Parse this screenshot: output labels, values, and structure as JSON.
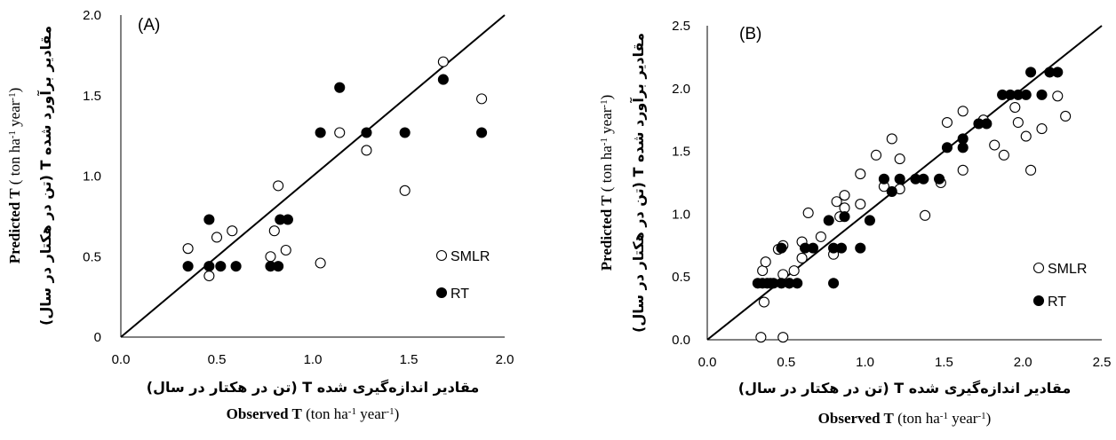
{
  "chart_data": [
    {
      "type": "scatter",
      "panel_label": "(A)",
      "xlim": [
        0,
        2.0
      ],
      "ylim": [
        0,
        2.0
      ],
      "xticks": [
        "0.0",
        "0.5",
        "1.0",
        "1.5",
        "2.0"
      ],
      "yticks": [
        "0",
        "0.5",
        "1.0",
        "1.5",
        "2.0"
      ],
      "xlabel_fa": "مقادیر اندازه‌گیری شده  T  (تن در هکتار در سال)",
      "xlabel_en": {
        "bold": "Observed T",
        "unit_pre": "(ton ha",
        "sup1": "-1",
        "unit_mid": " year",
        "sup2": "-1",
        "unit_post": ")"
      },
      "ylabel_en": {
        "bold": "Predicted T",
        "unit_pre": "( ton ha",
        "sup1": "-1",
        "unit_mid": " year",
        "sup2": "-1",
        "unit_post": ")"
      },
      "ylabel_fa": "مقادیر برآورد شده  T  (تن در هکتار در سال)",
      "reference_line": "1:1",
      "grid": false,
      "legend_position": "bottom-right",
      "series": [
        {
          "name": "SMLR",
          "marker": "open-circle",
          "points": [
            [
              0.35,
              0.55
            ],
            [
              0.46,
              0.38
            ],
            [
              0.5,
              0.62
            ],
            [
              0.58,
              0.66
            ],
            [
              0.78,
              0.5
            ],
            [
              0.8,
              0.66
            ],
            [
              0.82,
              0.94
            ],
            [
              0.86,
              0.54
            ],
            [
              1.04,
              0.46
            ],
            [
              1.14,
              1.27
            ],
            [
              1.28,
              1.16
            ],
            [
              1.48,
              0.91
            ],
            [
              1.68,
              1.71
            ],
            [
              1.88,
              1.48
            ]
          ]
        },
        {
          "name": "RT",
          "marker": "filled-circle",
          "points": [
            [
              0.35,
              0.44
            ],
            [
              0.46,
              0.73
            ],
            [
              0.46,
              0.44
            ],
            [
              0.52,
              0.44
            ],
            [
              0.6,
              0.44
            ],
            [
              0.78,
              0.44
            ],
            [
              0.82,
              0.44
            ],
            [
              0.83,
              0.73
            ],
            [
              0.87,
              0.73
            ],
            [
              1.04,
              1.27
            ],
            [
              1.14,
              1.55
            ],
            [
              1.28,
              1.27
            ],
            [
              1.48,
              1.27
            ],
            [
              1.68,
              1.6
            ],
            [
              1.88,
              1.27
            ]
          ]
        }
      ]
    },
    {
      "type": "scatter",
      "panel_label": "(B)",
      "xlim": [
        0,
        2.5
      ],
      "ylim": [
        0,
        2.5
      ],
      "xticks": [
        "0.0",
        "0.5",
        "1.0",
        "1.5",
        "2.0",
        "2.5"
      ],
      "yticks": [
        "0.0",
        "0.5",
        "1.0",
        "1.5",
        "2.0",
        "2.5"
      ],
      "xlabel_fa": "مقادیر اندازه‌گیری شده  T  (تن در هکتار در سال)",
      "xlabel_en": {
        "bold": "Observed T",
        "unit_pre": "(ton ha",
        "sup1": "-1",
        "unit_mid": " year",
        "sup2": "-1",
        "unit_post": ")"
      },
      "ylabel_en": {
        "bold": "Predicted T",
        "unit_pre": "( ton ha",
        "sup1": "-1",
        "unit_mid": " year",
        "sup2": "-1",
        "unit_post": ")"
      },
      "ylabel_fa": "مقادیر برآورد شده  T  (تن در هکتار در سال)",
      "reference_line": "1:1",
      "grid": false,
      "legend_position": "bottom-right",
      "series": [
        {
          "name": "SMLR",
          "marker": "open-circle",
          "points": [
            [
              0.34,
              0.02
            ],
            [
              0.35,
              0.55
            ],
            [
              0.36,
              0.3
            ],
            [
              0.37,
              0.62
            ],
            [
              0.4,
              0.45
            ],
            [
              0.45,
              0.72
            ],
            [
              0.48,
              0.75
            ],
            [
              0.48,
              0.52
            ],
            [
              0.48,
              0.02
            ],
            [
              0.52,
              0.45
            ],
            [
              0.55,
              0.55
            ],
            [
              0.6,
              0.78
            ],
            [
              0.6,
              0.65
            ],
            [
              0.64,
              1.01
            ],
            [
              0.72,
              0.82
            ],
            [
              0.8,
              0.68
            ],
            [
              0.82,
              1.1
            ],
            [
              0.84,
              0.98
            ],
            [
              0.87,
              1.15
            ],
            [
              0.87,
              1.05
            ],
            [
              0.97,
              1.32
            ],
            [
              0.97,
              1.08
            ],
            [
              1.07,
              1.47
            ],
            [
              1.12,
              1.22
            ],
            [
              1.17,
              1.6
            ],
            [
              1.22,
              1.44
            ],
            [
              1.22,
              1.2
            ],
            [
              1.38,
              0.99
            ],
            [
              1.48,
              1.25
            ],
            [
              1.52,
              1.73
            ],
            [
              1.62,
              1.82
            ],
            [
              1.62,
              1.35
            ],
            [
              1.75,
              1.75
            ],
            [
              1.82,
              1.55
            ],
            [
              1.88,
              1.47
            ],
            [
              1.95,
              1.85
            ],
            [
              1.97,
              1.73
            ],
            [
              2.02,
              1.62
            ],
            [
              2.05,
              1.35
            ],
            [
              2.12,
              1.68
            ],
            [
              2.22,
              1.94
            ],
            [
              2.27,
              1.78
            ]
          ]
        },
        {
          "name": "RT",
          "marker": "filled-circle",
          "points": [
            [
              0.32,
              0.45
            ],
            [
              0.35,
              0.45
            ],
            [
              0.38,
              0.45
            ],
            [
              0.42,
              0.45
            ],
            [
              0.47,
              0.45
            ],
            [
              0.47,
              0.73
            ],
            [
              0.52,
              0.45
            ],
            [
              0.57,
              0.45
            ],
            [
              0.62,
              0.73
            ],
            [
              0.67,
              0.73
            ],
            [
              0.77,
              0.95
            ],
            [
              0.8,
              0.73
            ],
            [
              0.8,
              0.45
            ],
            [
              0.85,
              0.73
            ],
            [
              0.87,
              0.98
            ],
            [
              0.97,
              0.73
            ],
            [
              1.03,
              0.95
            ],
            [
              1.12,
              1.28
            ],
            [
              1.17,
              1.18
            ],
            [
              1.22,
              1.28
            ],
            [
              1.32,
              1.28
            ],
            [
              1.37,
              1.28
            ],
            [
              1.47,
              1.28
            ],
            [
              1.52,
              1.53
            ],
            [
              1.62,
              1.53
            ],
            [
              1.62,
              1.6
            ],
            [
              1.72,
              1.72
            ],
            [
              1.77,
              1.72
            ],
            [
              1.87,
              1.95
            ],
            [
              1.92,
              1.95
            ],
            [
              1.97,
              1.95
            ],
            [
              2.02,
              1.95
            ],
            [
              2.05,
              2.13
            ],
            [
              2.12,
              1.95
            ],
            [
              2.17,
              2.13
            ],
            [
              2.22,
              2.13
            ]
          ]
        }
      ]
    }
  ]
}
